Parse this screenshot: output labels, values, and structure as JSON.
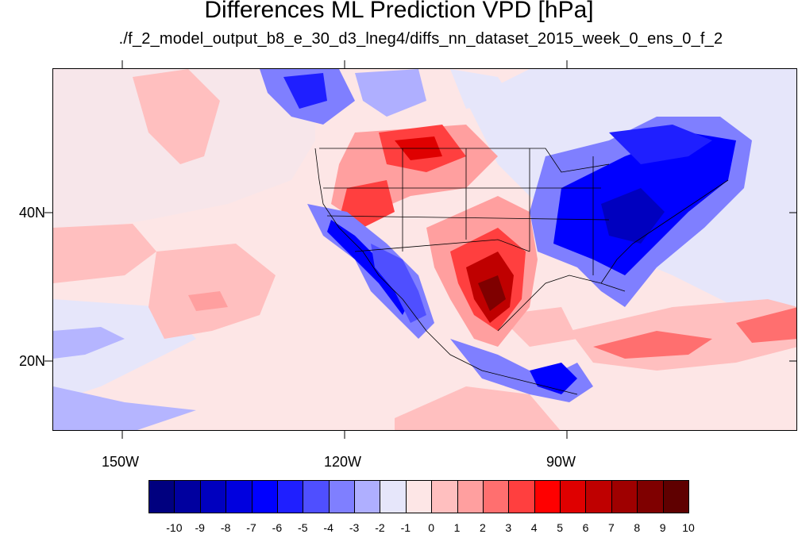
{
  "title": "Differences ML Prediction VPD [hPa]",
  "subtitle": "./f_2_model_output_b8_e_30_d3_lneg4/diffs_nn_dataset_2015_week_0_ens_0_f_2",
  "axes": {
    "y_ticks": [
      "40N",
      "20N"
    ],
    "x_ticks": [
      "150W",
      "120W",
      "90W"
    ]
  },
  "colorbar": {
    "labels": [
      "-10",
      "-9",
      "-8",
      "-7",
      "-6",
      "-5",
      "-4",
      "-3",
      "-2",
      "-1",
      "0",
      "1",
      "2",
      "3",
      "4",
      "5",
      "6",
      "7",
      "8",
      "9",
      "10"
    ],
    "colors": [
      "#00007f",
      "#00009f",
      "#0000bf",
      "#0000df",
      "#0000ff",
      "#1f1fff",
      "#4f4fff",
      "#7f7fff",
      "#afafff",
      "#e6e6fa",
      "#fde6e6",
      "#ffbfbf",
      "#ff9f9f",
      "#ff6f6f",
      "#ff3f3f",
      "#ff0000",
      "#df0000",
      "#bf0000",
      "#9f0000",
      "#7f0000",
      "#5f0000"
    ]
  }
}
